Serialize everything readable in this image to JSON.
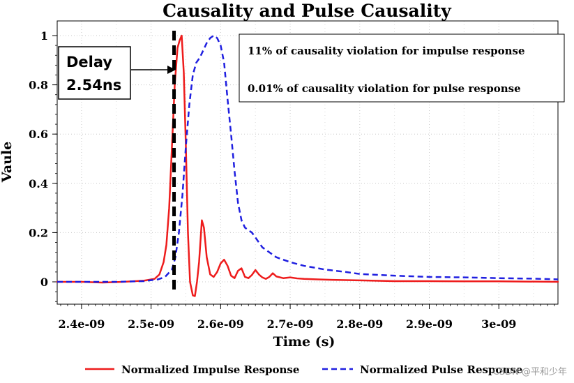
{
  "chart_data": {
    "type": "line",
    "title": "Causality and Pulse Causality",
    "xlabel": "Time (s)",
    "ylabel": "Vaule",
    "xlim": [
      2.365e-09,
      3.085e-09
    ],
    "ylim": [
      -0.09,
      1.0
    ],
    "x_ticks": [
      2.4e-09,
      2.5e-09,
      2.6e-09,
      2.7e-09,
      2.8e-09,
      2.9e-09,
      3e-09
    ],
    "x_tick_labels": [
      "2.4e-09",
      "2.5e-09",
      "2.6e-09",
      "2.7e-09",
      "2.8e-09",
      "2.9e-09",
      "3e-09"
    ],
    "y_ticks": [
      0,
      0.2,
      0.4,
      0.6,
      0.8,
      1
    ],
    "y_tick_labels": [
      "0",
      "0.2",
      "0.4",
      "0.6",
      "0.8",
      "1"
    ],
    "grid": true,
    "legend_position": "bottom",
    "series": [
      {
        "name": "Normalized Impulse Response",
        "color": "#ee1c1c",
        "style": "solid",
        "x": [
          2.365e-09,
          2.4e-09,
          2.43e-09,
          2.46e-09,
          2.49e-09,
          2.505e-09,
          2.512e-09,
          2.518e-09,
          2.522e-09,
          2.526e-09,
          2.53e-09,
          2.534e-09,
          2.538e-09,
          2.541e-09,
          2.544e-09,
          2.547e-09,
          2.55e-09,
          2.553e-09,
          2.556e-09,
          2.56e-09,
          2.563e-09,
          2.566e-09,
          2.569e-09,
          2.573e-09,
          2.576e-09,
          2.58e-09,
          2.585e-09,
          2.59e-09,
          2.595e-09,
          2.6e-09,
          2.605e-09,
          2.61e-09,
          2.615e-09,
          2.62e-09,
          2.625e-09,
          2.63e-09,
          2.635e-09,
          2.64e-09,
          2.645e-09,
          2.65e-09,
          2.655e-09,
          2.66e-09,
          2.665e-09,
          2.67e-09,
          2.675e-09,
          2.68e-09,
          2.69e-09,
          2.7e-09,
          2.71e-09,
          2.72e-09,
          2.74e-09,
          2.76e-09,
          2.8e-09,
          2.85e-09,
          2.9e-09,
          2.95e-09,
          3e-09,
          3.085e-09
        ],
        "values": [
          0.0,
          0.0,
          -0.003,
          0.0,
          0.005,
          0.012,
          0.03,
          0.08,
          0.15,
          0.3,
          0.55,
          0.8,
          0.95,
          0.98,
          1.0,
          0.85,
          0.55,
          0.2,
          0.0,
          -0.055,
          -0.058,
          0.0,
          0.08,
          0.25,
          0.22,
          0.1,
          0.03,
          0.02,
          0.04,
          0.075,
          0.09,
          0.065,
          0.025,
          0.015,
          0.045,
          0.055,
          0.02,
          0.015,
          0.028,
          0.048,
          0.03,
          0.018,
          0.012,
          0.02,
          0.035,
          0.022,
          0.015,
          0.018,
          0.014,
          0.012,
          0.01,
          0.008,
          0.006,
          0.003,
          0.003,
          0.002,
          0.002,
          0.0
        ]
      },
      {
        "name": "Normalized Pulse Response",
        "color": "#1f1fe0",
        "style": "dashed",
        "x": [
          2.365e-09,
          2.4e-09,
          2.45e-09,
          2.49e-09,
          2.51e-09,
          2.52e-09,
          2.53e-09,
          2.535e-09,
          2.54e-09,
          2.545e-09,
          2.55e-09,
          2.555e-09,
          2.56e-09,
          2.565e-09,
          2.57e-09,
          2.575e-09,
          2.58e-09,
          2.585e-09,
          2.59e-09,
          2.595e-09,
          2.6e-09,
          2.605e-09,
          2.61e-09,
          2.615e-09,
          2.62e-09,
          2.625e-09,
          2.63e-09,
          2.635e-09,
          2.64e-09,
          2.645e-09,
          2.65e-09,
          2.66e-09,
          2.67e-09,
          2.68e-09,
          2.7e-09,
          2.72e-09,
          2.75e-09,
          2.78e-09,
          2.8e-09,
          2.85e-09,
          2.9e-09,
          2.95e-09,
          3e-09,
          3.05e-09,
          3.085e-09
        ],
        "values": [
          0.0,
          0.0,
          0.0,
          0.003,
          0.01,
          0.02,
          0.05,
          0.1,
          0.2,
          0.35,
          0.55,
          0.72,
          0.84,
          0.89,
          0.91,
          0.94,
          0.97,
          0.99,
          1.0,
          0.99,
          0.96,
          0.89,
          0.74,
          0.6,
          0.45,
          0.32,
          0.25,
          0.22,
          0.21,
          0.2,
          0.18,
          0.14,
          0.12,
          0.1,
          0.08,
          0.065,
          0.05,
          0.04,
          0.032,
          0.025,
          0.02,
          0.018,
          0.015,
          0.013,
          0.01
        ]
      }
    ],
    "annotations": {
      "delay_line_x": 2.533e-09,
      "delay_text_line1": "Delay",
      "delay_text_line2": "2.54ns",
      "note_line1": "11% of causality violation for impulse response",
      "note_line2": "0.01% of causality violation for pulse response"
    }
  },
  "watermark": "CSDN @平和少年"
}
